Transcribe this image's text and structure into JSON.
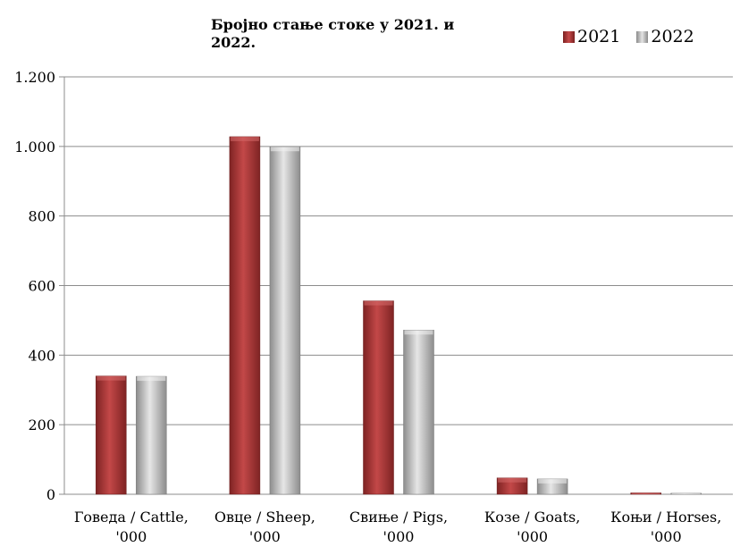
{
  "chart_data": {
    "type": "bar",
    "title": "Бројно стање стоке у 2021. и 2022.",
    "title_lines": [
      "Бројно стање стоке у 2021. и",
      "2022."
    ],
    "categories": [
      [
        "Говеда / Cattle,",
        "'000"
      ],
      [
        "Овце / Sheep,",
        "'000"
      ],
      [
        "Свиње / Pigs,",
        "'000"
      ],
      [
        "Козе / Goats,",
        "'000"
      ],
      [
        "Коњи / Horses,",
        "'000"
      ]
    ],
    "series": [
      {
        "name": "2021",
        "values": [
          340,
          1028,
          556,
          47,
          4
        ],
        "color": "#b03a3a"
      },
      {
        "name": "2022",
        "values": [
          339,
          999,
          472,
          44,
          3
        ],
        "color": "#a9a9a9"
      }
    ],
    "ylim": [
      0,
      1200
    ],
    "yticks": [
      0,
      200,
      400,
      600,
      800,
      1000,
      1200
    ],
    "ytick_labels": [
      "0",
      "200",
      "400",
      "600",
      "800",
      "1.000",
      "1.200"
    ],
    "grid": true,
    "legend_position": "top-right"
  }
}
